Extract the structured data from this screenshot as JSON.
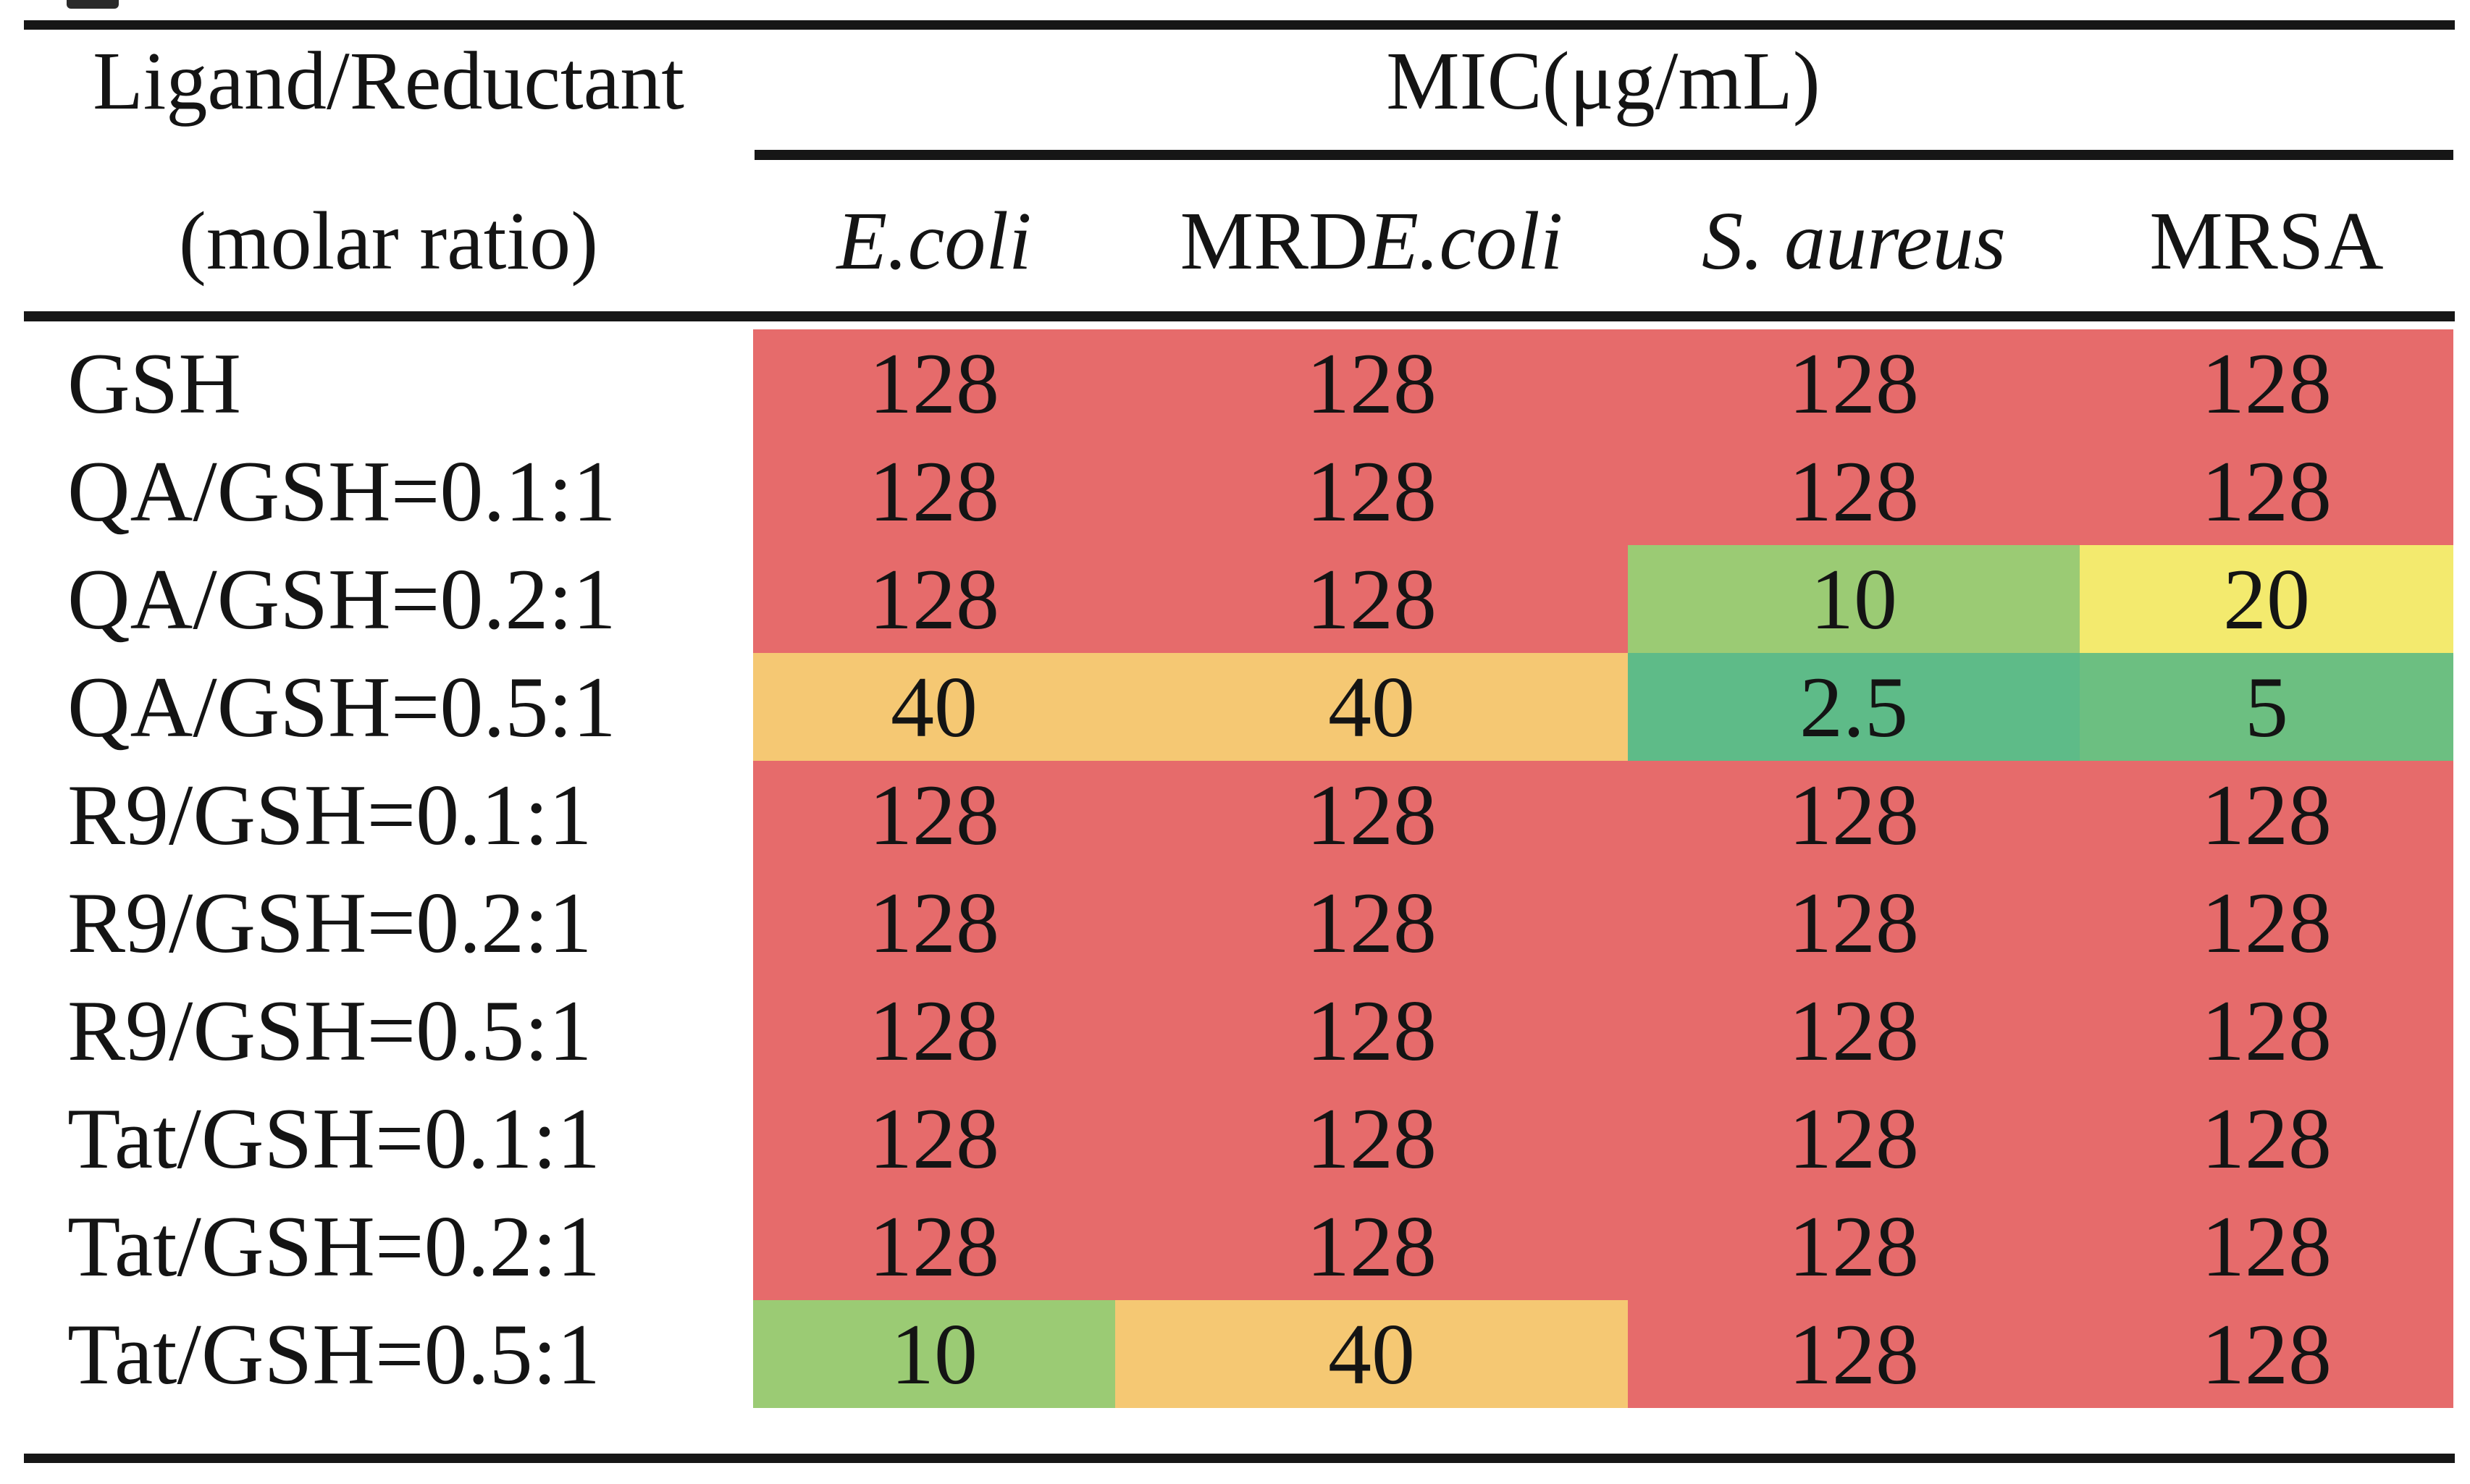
{
  "table": {
    "row_group_header": {
      "line1": "Ligand/Reductant",
      "line2": "(molar ratio)"
    },
    "col_group_header": "MIC(μg/mL)",
    "columns": [
      {
        "roman": "",
        "italic": "E.coli"
      },
      {
        "roman": "MRD ",
        "italic": "E.coli"
      },
      {
        "roman": "",
        "italic": "S. aureus"
      },
      {
        "roman": "MRSA",
        "italic": ""
      }
    ],
    "rows": [
      {
        "label": "GSH",
        "values": [
          {
            "text": "128",
            "color": "red"
          },
          {
            "text": "128",
            "color": "red"
          },
          {
            "text": "128",
            "color": "red"
          },
          {
            "text": "128",
            "color": "red"
          }
        ]
      },
      {
        "label": "QA/GSH=0.1:1",
        "values": [
          {
            "text": "128",
            "color": "red"
          },
          {
            "text": "128",
            "color": "red"
          },
          {
            "text": "128",
            "color": "red"
          },
          {
            "text": "128",
            "color": "red"
          }
        ]
      },
      {
        "label": "QA/GSH=0.2:1",
        "values": [
          {
            "text": "128",
            "color": "red"
          },
          {
            "text": "128",
            "color": "red"
          },
          {
            "text": "10",
            "color": "green10"
          },
          {
            "text": "20",
            "color": "yellow"
          }
        ]
      },
      {
        "label": "QA/GSH=0.5:1",
        "values": [
          {
            "text": "40",
            "color": "orange"
          },
          {
            "text": "40",
            "color": "orange"
          },
          {
            "text": "2.5",
            "color": "green25"
          },
          {
            "text": "5",
            "color": "green5"
          }
        ]
      },
      {
        "label": "R9/GSH=0.1:1",
        "values": [
          {
            "text": "128",
            "color": "red"
          },
          {
            "text": "128",
            "color": "red"
          },
          {
            "text": "128",
            "color": "red"
          },
          {
            "text": "128",
            "color": "red"
          }
        ]
      },
      {
        "label": "R9/GSH=0.2:1",
        "values": [
          {
            "text": "128",
            "color": "red"
          },
          {
            "text": "128",
            "color": "red"
          },
          {
            "text": "128",
            "color": "red"
          },
          {
            "text": "128",
            "color": "red"
          }
        ]
      },
      {
        "label": "R9/GSH=0.5:1",
        "values": [
          {
            "text": "128",
            "color": "red"
          },
          {
            "text": "128",
            "color": "red"
          },
          {
            "text": "128",
            "color": "red"
          },
          {
            "text": "128",
            "color": "red"
          }
        ]
      },
      {
        "label": "Tat/GSH=0.1:1",
        "values": [
          {
            "text": "128",
            "color": "red"
          },
          {
            "text": "128",
            "color": "red"
          },
          {
            "text": "128",
            "color": "red"
          },
          {
            "text": "128",
            "color": "red"
          }
        ]
      },
      {
        "label": "Tat/GSH=0.2:1",
        "values": [
          {
            "text": "128",
            "color": "red"
          },
          {
            "text": "128",
            "color": "red"
          },
          {
            "text": "128",
            "color": "red"
          },
          {
            "text": "128",
            "color": "red"
          }
        ]
      },
      {
        "label": "Tat/GSH=0.5:1",
        "values": [
          {
            "text": "10",
            "color": "green10"
          },
          {
            "text": "40",
            "color": "orange"
          },
          {
            "text": "128",
            "color": "red"
          },
          {
            "text": "128",
            "color": "red"
          }
        ]
      }
    ]
  },
  "colors": {
    "red": "#E66B6B",
    "orange": "#F5C873",
    "yellow": "#F3EA6E",
    "green10": "#9BCB74",
    "green5": "#6CBF81",
    "green25": "#5EBB88"
  }
}
